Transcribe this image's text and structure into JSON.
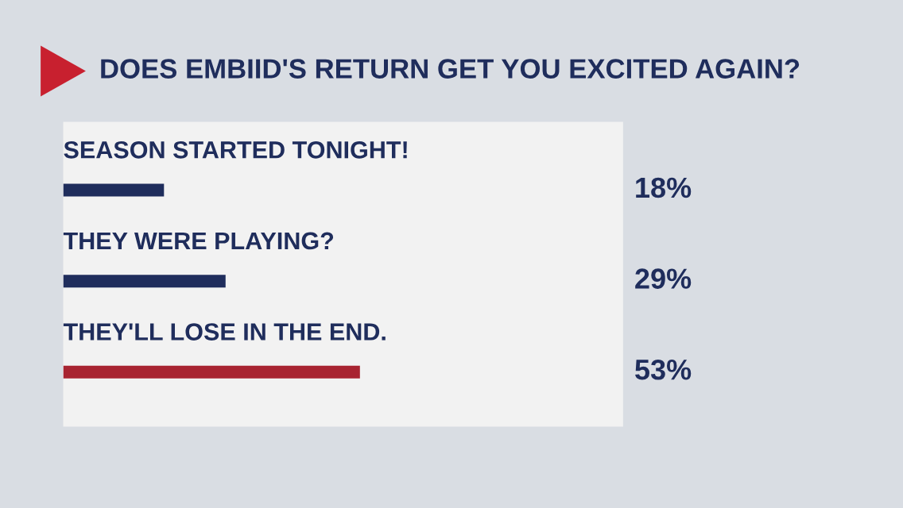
{
  "chart_data": {
    "type": "bar",
    "orientation": "horizontal",
    "title": "DOES EMBIID'S RETURN GET YOU EXCITED AGAIN?",
    "categories": [
      "SEASON STARTED TONIGHT!",
      "THEY WERE PLAYING?",
      "THEY'LL LOSE IN THE END."
    ],
    "values": [
      18,
      29,
      53
    ],
    "colors": [
      "#1f2d5c",
      "#1f2d5c",
      "#a82431"
    ],
    "value_labels": [
      "18%",
      "29%",
      "53%"
    ],
    "xlim": [
      0,
      100
    ]
  }
}
